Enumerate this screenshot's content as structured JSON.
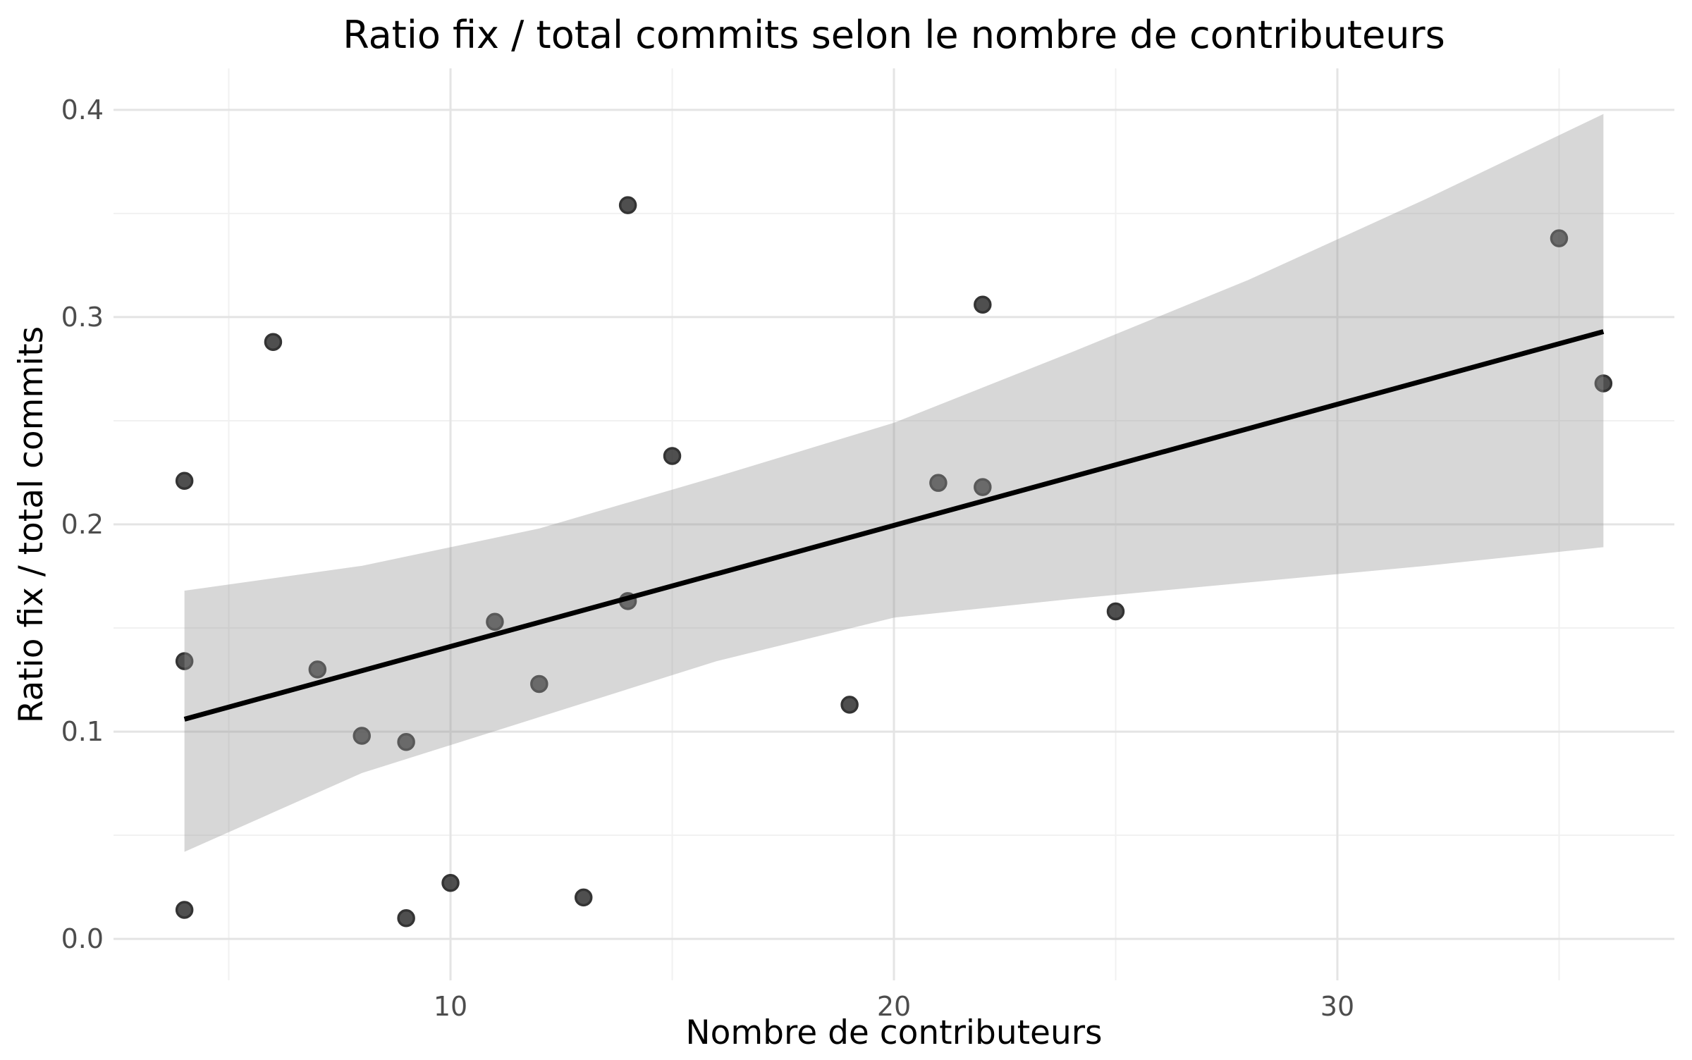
{
  "title": "Ratio fix / total commits selon le nombre de contributeurs",
  "chart_data": {
    "type": "scatter",
    "title": "Ratio fix / total commits selon le nombre de contributeurs",
    "xlabel": "Nombre de contributeurs",
    "ylabel": "Ratio fix / total commits",
    "xlim": [
      2.4,
      37.6
    ],
    "ylim": [
      -0.02,
      0.42
    ],
    "grid": true,
    "legend": "none",
    "x_major_ticks": [
      10,
      20,
      30
    ],
    "x_tick_labels": [
      "10",
      "20",
      "30"
    ],
    "x_minor_ticks": [
      5,
      15,
      25,
      35
    ],
    "y_major_ticks": [
      0.0,
      0.1,
      0.2,
      0.3,
      0.4
    ],
    "y_tick_labels": [
      "0.0",
      "0.1",
      "0.2",
      "0.3",
      "0.4"
    ],
    "y_minor_ticks": [
      0.05,
      0.15,
      0.25,
      0.35
    ],
    "points": [
      [
        4,
        0.221
      ],
      [
        4,
        0.134
      ],
      [
        4,
        0.014
      ],
      [
        6,
        0.288
      ],
      [
        7,
        0.13
      ],
      [
        8,
        0.098
      ],
      [
        9,
        0.095
      ],
      [
        9,
        0.01
      ],
      [
        10,
        0.027
      ],
      [
        11,
        0.153
      ],
      [
        12,
        0.123
      ],
      [
        13,
        0.02
      ],
      [
        14,
        0.354
      ],
      [
        14,
        0.163
      ],
      [
        15,
        0.233
      ],
      [
        19,
        0.113
      ],
      [
        21,
        0.22
      ],
      [
        22,
        0.306
      ],
      [
        22,
        0.218
      ],
      [
        25,
        0.158
      ],
      [
        35,
        0.338
      ],
      [
        36,
        0.268
      ]
    ],
    "trend": {
      "x": [
        4,
        36
      ],
      "y": [
        0.106,
        0.293
      ]
    },
    "ci_band": {
      "x": [
        4,
        8,
        12,
        16,
        20,
        24,
        28,
        32,
        36
      ],
      "lower": [
        0.042,
        0.08,
        0.107,
        0.134,
        0.155,
        0.164,
        0.172,
        0.18,
        0.189
      ],
      "upper": [
        0.168,
        0.18,
        0.198,
        0.223,
        0.249,
        0.283,
        0.318,
        0.357,
        0.398
      ]
    }
  },
  "style": {
    "background": "#ffffff",
    "grid_major_color": "#e4e4e4",
    "grid_minor_color": "#f1f1f1",
    "point_fill": "#3c3c3c",
    "point_stroke": "#1f1f1f",
    "band_fill_rgba": "rgba(150,150,150,0.38)",
    "trend_color": "#000000",
    "tick_label_color": "#4d4d4d"
  }
}
